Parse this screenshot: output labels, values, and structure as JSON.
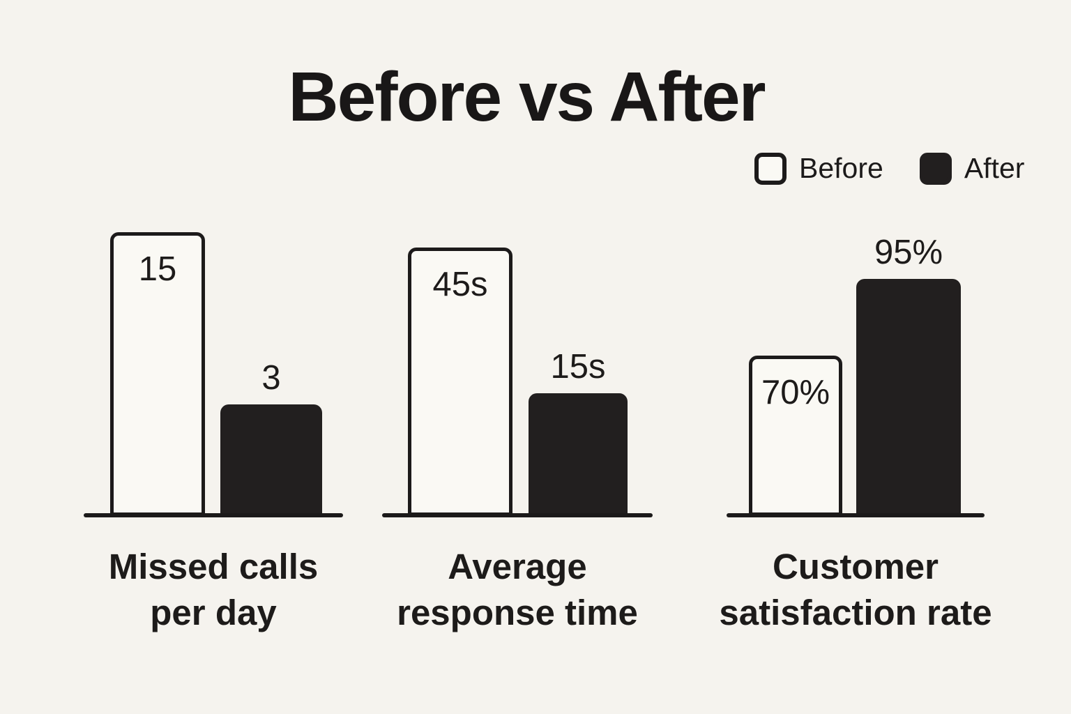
{
  "title": "Before vs After",
  "legend": {
    "before_label": "Before",
    "after_label": "After"
  },
  "chart_data": {
    "type": "bar",
    "title": "Before vs After",
    "categories": [
      "Missed calls per day",
      "Average response time",
      "Customer satisfaction rate"
    ],
    "series": [
      {
        "name": "Before",
        "values": [
          15,
          45,
          70
        ],
        "value_labels": [
          "15",
          "45s",
          "70%"
        ],
        "fill": "#faf9f4",
        "outline": "#1c1a1a"
      },
      {
        "name": "After",
        "values": [
          3,
          15,
          95
        ],
        "value_labels": [
          "3",
          "15s",
          "95%"
        ],
        "fill": "#221f1f"
      }
    ],
    "units": [
      "calls per day",
      "seconds",
      "percent"
    ],
    "legend_position": "top-right",
    "grid": false,
    "axes": "baseline-only",
    "value_label_placement": {
      "before": "inside-top",
      "after": "above-bar"
    },
    "groups": [
      {
        "category": "Missed calls per day",
        "category_lines": [
          "Missed calls",
          "per day"
        ],
        "before_label": "15",
        "after_label": "3"
      },
      {
        "category": "Average response time",
        "category_lines": [
          "Average",
          "response time"
        ],
        "before_label": "45s",
        "after_label": "15s"
      },
      {
        "category": "Customer satisfaction rate",
        "category_lines": [
          "Customer",
          "satisfaction rate"
        ],
        "before_label": "70%",
        "after_label": "95%"
      }
    ]
  },
  "colors": {
    "background": "#f5f3ee",
    "bar_before_fill": "#faf9f4",
    "bar_after_fill": "#221f1f",
    "ink": "#1c1a1a"
  }
}
